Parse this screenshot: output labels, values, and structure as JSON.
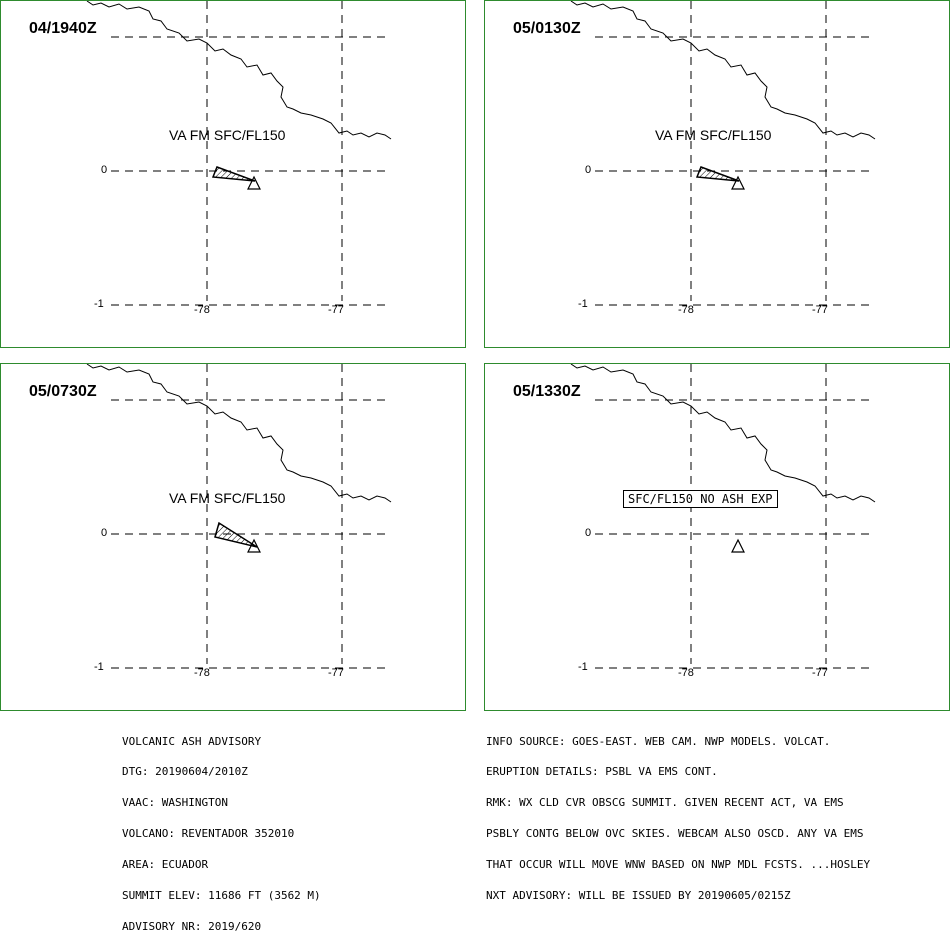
{
  "panels": [
    {
      "time": "04/1940Z",
      "label": "VA FM SFC/FL150",
      "no_ash": false
    },
    {
      "time": "05/0130Z",
      "label": "VA FM SFC/FL150",
      "no_ash": false
    },
    {
      "time": "05/0730Z",
      "label": "VA FM SFC/FL150",
      "no_ash": false
    },
    {
      "time": "05/1330Z",
      "label": "SFC/FL150 NO ASH EXP",
      "no_ash": true
    }
  ],
  "grid": {
    "lat_labels": [
      "0",
      "-1"
    ],
    "lon_labels": [
      "-78",
      "-77"
    ]
  },
  "advisory_left": [
    "VOLCANIC ASH ADVISORY",
    "DTG: 20190604/2010Z",
    "VAAC: WASHINGTON",
    "VOLCANO: REVENTADOR 352010",
    "AREA: ECUADOR",
    "SUMMIT ELEV: 11686 FT (3562 M)",
    "ADVISORY NR: 2019/620"
  ],
  "advisory_right": [
    "INFO SOURCE: GOES-EAST. WEB CAM. NWP MODELS. VOLCAT.",
    "ERUPTION DETAILS: PSBL VA EMS CONT.",
    "RMK: WX CLD CVR OBSCG SUMMIT. GIVEN RECENT ACT, VA EMS",
    "PSBLY CONTG BELOW OVC SKIES. WEBCAM ALSO OSCD. ANY VA EMS",
    "THAT OCCUR WILL MOVE WNW BASED ON NWP MDL FCSTS. ...HOSLEY",
    "NXT ADVISORY: WILL BE ISSUED BY 20190605/0215Z"
  ],
  "colors": {
    "panel_border": "#2e8b2e",
    "ink": "#000000"
  }
}
